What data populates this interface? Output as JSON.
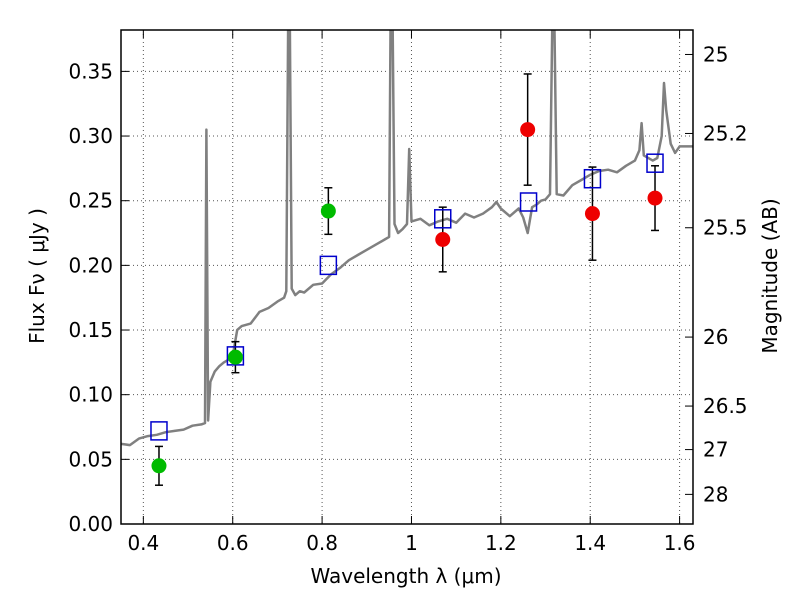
{
  "chart_data": {
    "type": "line",
    "xlabel": "Wavelength  λ (μm)",
    "ylabel": "Flux  Fν  ( μJy )",
    "y2label": "Magnitude (AB)",
    "xlim": [
      0.35,
      1.63
    ],
    "ylim": [
      0.0,
      0.382
    ],
    "grid": true,
    "x_ticks": [
      0.4,
      0.6,
      0.8,
      1.0,
      1.2,
      1.4,
      1.6
    ],
    "x_tick_labels": [
      "0.4",
      "0.6",
      "0.8",
      "1",
      "1.2",
      "1.4",
      "1.6"
    ],
    "y_ticks": [
      0.0,
      0.05,
      0.1,
      0.15,
      0.2,
      0.25,
      0.3,
      0.35
    ],
    "y_tick_labels": [
      "0.00",
      "0.05",
      "0.10",
      "0.15",
      "0.20",
      "0.25",
      "0.30",
      "0.35"
    ],
    "y2_ticks": [
      {
        "mag": 25,
        "label": "25"
      },
      {
        "mag": 25.2,
        "label": "25.2"
      },
      {
        "mag": 25.5,
        "label": "25.5"
      },
      {
        "mag": 26,
        "label": "26"
      },
      {
        "mag": 26.5,
        "label": "26.5"
      },
      {
        "mag": 27,
        "label": "27"
      },
      {
        "mag": 28,
        "label": "28"
      }
    ],
    "colors": {
      "spectrum": "#808080",
      "model_photometry": "#0000cc",
      "green_points": "#00bb00",
      "red_points": "#ee0000",
      "error_bars": "#000000",
      "grid": "#555555"
    },
    "spectrum": [
      [
        0.35,
        0.062
      ],
      [
        0.37,
        0.061
      ],
      [
        0.39,
        0.066
      ],
      [
        0.41,
        0.068
      ],
      [
        0.43,
        0.069
      ],
      [
        0.45,
        0.071
      ],
      [
        0.47,
        0.072
      ],
      [
        0.49,
        0.073
      ],
      [
        0.51,
        0.076
      ],
      [
        0.53,
        0.077
      ],
      [
        0.538,
        0.078
      ],
      [
        0.541,
        0.305
      ],
      [
        0.545,
        0.08
      ],
      [
        0.55,
        0.11
      ],
      [
        0.56,
        0.118
      ],
      [
        0.57,
        0.122
      ],
      [
        0.58,
        0.125
      ],
      [
        0.59,
        0.127
      ],
      [
        0.6,
        0.13
      ],
      [
        0.61,
        0.15
      ],
      [
        0.62,
        0.153
      ],
      [
        0.64,
        0.155
      ],
      [
        0.66,
        0.164
      ],
      [
        0.68,
        0.167
      ],
      [
        0.7,
        0.172
      ],
      [
        0.715,
        0.175
      ],
      [
        0.72,
        0.18
      ],
      [
        0.724,
        0.382
      ],
      [
        0.728,
        0.382
      ],
      [
        0.732,
        0.182
      ],
      [
        0.74,
        0.177
      ],
      [
        0.75,
        0.18
      ],
      [
        0.76,
        0.179
      ],
      [
        0.78,
        0.185
      ],
      [
        0.8,
        0.186
      ],
      [
        0.82,
        0.193
      ],
      [
        0.84,
        0.198
      ],
      [
        0.86,
        0.204
      ],
      [
        0.88,
        0.208
      ],
      [
        0.9,
        0.212
      ],
      [
        0.92,
        0.216
      ],
      [
        0.94,
        0.22
      ],
      [
        0.95,
        0.222
      ],
      [
        0.953,
        0.382
      ],
      [
        0.958,
        0.382
      ],
      [
        0.962,
        0.232
      ],
      [
        0.97,
        0.225
      ],
      [
        0.98,
        0.228
      ],
      [
        0.99,
        0.232
      ],
      [
        0.995,
        0.29
      ],
      [
        1.0,
        0.234
      ],
      [
        1.02,
        0.236
      ],
      [
        1.04,
        0.231
      ],
      [
        1.06,
        0.234
      ],
      [
        1.08,
        0.236
      ],
      [
        1.1,
        0.233
      ],
      [
        1.12,
        0.24
      ],
      [
        1.14,
        0.237
      ],
      [
        1.16,
        0.24
      ],
      [
        1.18,
        0.245
      ],
      [
        1.19,
        0.249
      ],
      [
        1.2,
        0.244
      ],
      [
        1.22,
        0.238
      ],
      [
        1.24,
        0.244
      ],
      [
        1.25,
        0.237
      ],
      [
        1.26,
        0.225
      ],
      [
        1.27,
        0.245
      ],
      [
        1.28,
        0.247
      ],
      [
        1.29,
        0.25
      ],
      [
        1.3,
        0.251
      ],
      [
        1.31,
        0.255
      ],
      [
        1.315,
        0.382
      ],
      [
        1.32,
        0.382
      ],
      [
        1.325,
        0.255
      ],
      [
        1.34,
        0.254
      ],
      [
        1.36,
        0.262
      ],
      [
        1.38,
        0.266
      ],
      [
        1.4,
        0.27
      ],
      [
        1.42,
        0.273
      ],
      [
        1.44,
        0.274
      ],
      [
        1.46,
        0.272
      ],
      [
        1.48,
        0.277
      ],
      [
        1.5,
        0.281
      ],
      [
        1.51,
        0.289
      ],
      [
        1.515,
        0.31
      ],
      [
        1.52,
        0.285
      ],
      [
        1.54,
        0.281
      ],
      [
        1.55,
        0.283
      ],
      [
        1.56,
        0.3
      ],
      [
        1.565,
        0.341
      ],
      [
        1.57,
        0.32
      ],
      [
        1.58,
        0.294
      ],
      [
        1.59,
        0.287
      ],
      [
        1.6,
        0.292
      ],
      [
        1.62,
        0.292
      ],
      [
        1.63,
        0.292
      ]
    ],
    "model_photometry": {
      "x": [
        0.435,
        0.606,
        0.814,
        1.07,
        1.262,
        1.405,
        1.545
      ],
      "y": [
        0.072,
        0.13,
        0.2,
        0.236,
        0.249,
        0.267,
        0.279
      ]
    },
    "observed_green": {
      "x": [
        0.435,
        0.606,
        0.814
      ],
      "y": [
        0.045,
        0.129,
        0.242
      ],
      "yerr": [
        0.015,
        0.012,
        0.018
      ]
    },
    "observed_red": {
      "x": [
        1.07,
        1.26,
        1.405,
        1.545
      ],
      "y": [
        0.22,
        0.305,
        0.24,
        0.252
      ],
      "yerr": [
        0.025,
        0.043,
        0.036,
        0.025
      ]
    }
  }
}
